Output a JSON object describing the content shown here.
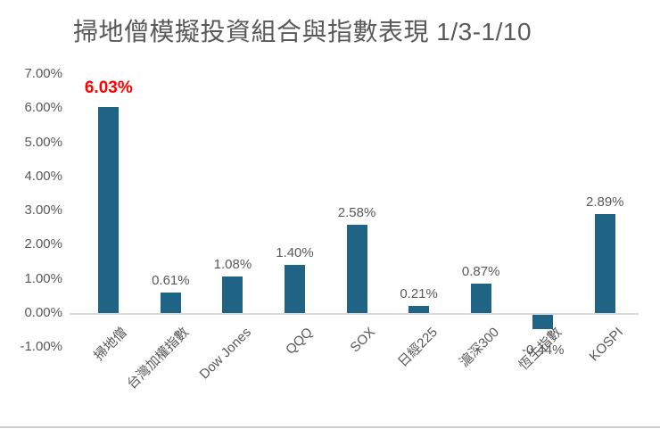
{
  "chart_data": {
    "type": "bar",
    "title": "掃地僧模擬投資組合與指數表現 1/3-1/10",
    "categories": [
      "掃地僧",
      "台灣加權指數",
      "Dow Jones",
      "QQQ",
      "SOX",
      "日經225",
      "滬深300",
      "恆生指數",
      "KOSPI"
    ],
    "values": [
      6.03,
      0.61,
      1.08,
      1.4,
      2.58,
      0.21,
      0.87,
      -0.44,
      2.89
    ],
    "data_labels": [
      "6.03%",
      "0.61%",
      "1.08%",
      "1.40%",
      "2.58%",
      "0.21%",
      "0.87%",
      "-0.44%",
      "2.89%"
    ],
    "highlight": {
      "index": 0,
      "label_color": "#ff0000"
    },
    "y_ticks": [
      "7.00%",
      "6.00%",
      "5.00%",
      "4.00%",
      "3.00%",
      "2.00%",
      "1.00%",
      "0.00%",
      "-1.00%"
    ],
    "ylim": [
      -1,
      7
    ],
    "grid": false,
    "legend": false,
    "xlabel": "",
    "ylabel": "",
    "colors": {
      "bar": "#1f6484",
      "text": "#595959",
      "axis_line": "#d9d9d9",
      "background": "#ffffff"
    }
  }
}
